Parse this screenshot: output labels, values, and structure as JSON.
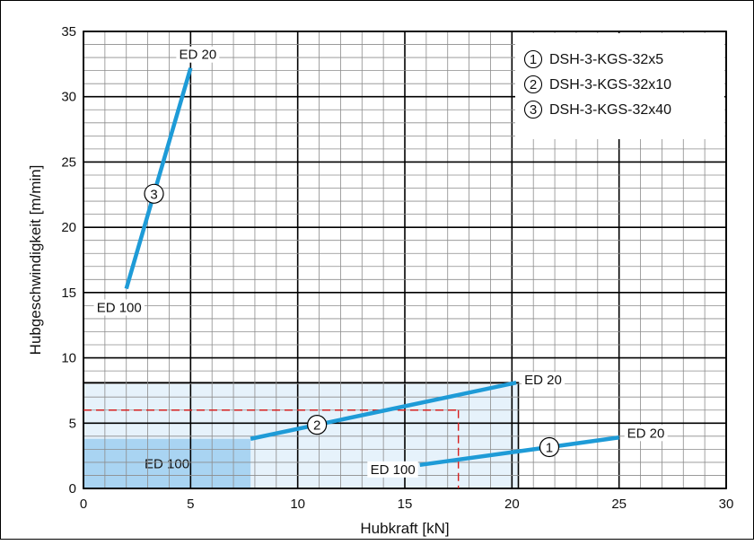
{
  "chart_data": {
    "type": "line",
    "xlabel": "Hubkraft  [kN]",
    "ylabel": "Hubgeschwindigkeit  [m/min]",
    "xlim": [
      0,
      30
    ],
    "ylim": [
      0,
      35
    ],
    "x_ticks": [
      0,
      5,
      10,
      15,
      20,
      25,
      30
    ],
    "y_ticks": [
      0,
      5,
      10,
      15,
      20,
      25,
      30,
      35
    ],
    "grid": true,
    "legend_position": "top-right",
    "line_color": "#1e9bd7",
    "series": [
      {
        "name": "DSH-3-KGS-32x5",
        "marker": "1",
        "x": [
          15.7,
          25.0
        ],
        "y": [
          1.8,
          3.9
        ],
        "label_start": "ED 100",
        "label_end": "ED 20"
      },
      {
        "name": "DSH-3-KGS-32x10",
        "marker": "2",
        "x": [
          7.8,
          20.2
        ],
        "y": [
          3.8,
          8.1
        ],
        "label_start": "",
        "label_end": "ED 20"
      },
      {
        "name": "DSH-3-KGS-32x40",
        "marker": "3",
        "x": [
          2.0,
          5.0
        ],
        "y": [
          15.3,
          32.2
        ],
        "label_start": "ED 100",
        "label_end": "ED 20"
      }
    ],
    "regions": [
      {
        "label": "",
        "x": [
          0,
          20.3
        ],
        "y": [
          0,
          8.1
        ],
        "color": "#e6f2fb"
      },
      {
        "label": "ED 100",
        "x": [
          0,
          7.8
        ],
        "y": [
          0,
          3.8
        ],
        "color": "#a9d4f2"
      }
    ],
    "reference_lines": {
      "x": 17.5,
      "y": 6.0,
      "color": "#d62020"
    },
    "legend": [
      {
        "marker": "1",
        "text": "DSH-3-KGS-32x5"
      },
      {
        "marker": "2",
        "text": "DSH-3-KGS-32x10"
      },
      {
        "marker": "3",
        "text": "DSH-3-KGS-32x40"
      }
    ]
  }
}
